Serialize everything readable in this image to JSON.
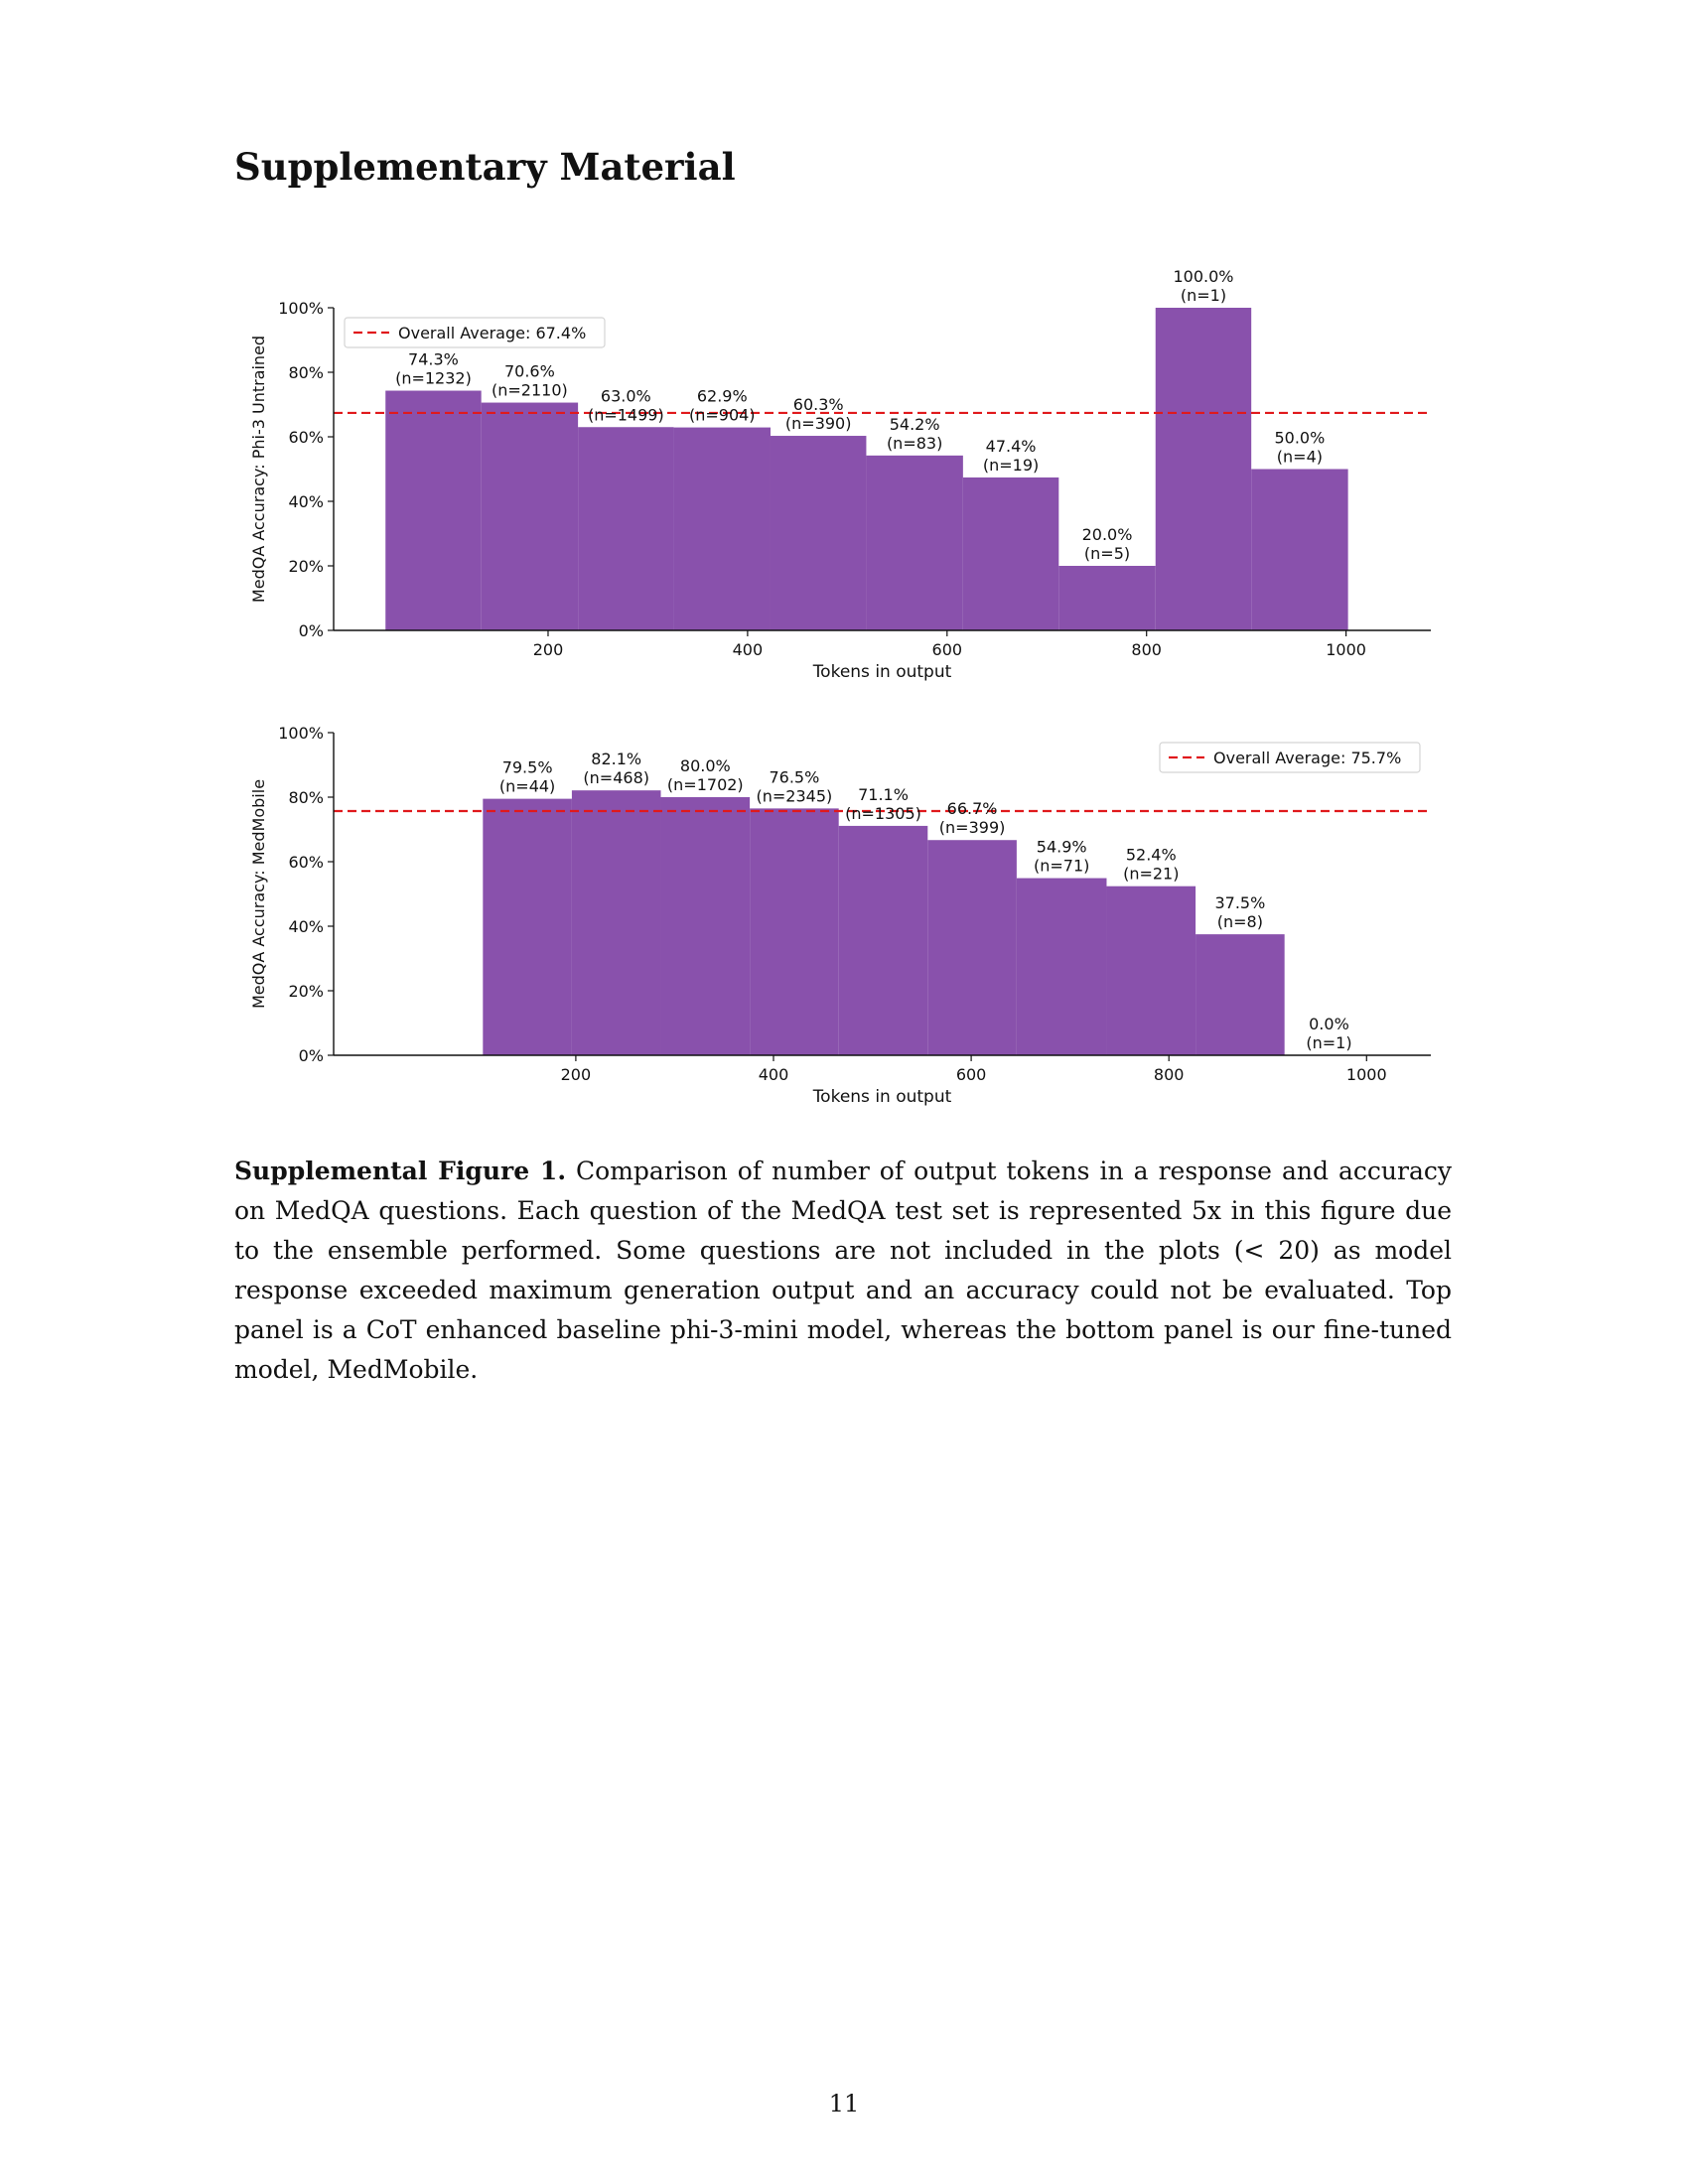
{
  "heading": "Supplementary Material",
  "caption": {
    "label": "Supplemental Figure 1.",
    "text": "Comparison of number of output tokens in a response and accuracy on MedQA questions. Each question of the MedQA test set is represented 5x in this figure due to the ensemble performed. Some questions are not included in the plots (< 20) as model response exceeded maximum generation output and an accuracy could not be evaluated. Top panel is a CoT enhanced baseline phi-3-mini model, whereas the bottom panel is our fine-tuned model, MedMobile."
  },
  "page_number": "11",
  "colors": {
    "bar": "#8951ac",
    "average_line": "#e0191c",
    "axis": "#111111"
  },
  "chart_data": [
    {
      "type": "bar",
      "title": "",
      "xlabel": "Tokens in output",
      "ylabel": "MedQA Accuracy: Phi-3 Untrained",
      "xlim": [
        -15,
        1085
      ],
      "ylim": [
        0,
        100
      ],
      "xticks": [
        200,
        400,
        600,
        800,
        1000
      ],
      "xtick_labels": [
        "200",
        "400",
        "600",
        "800",
        "1000"
      ],
      "yticks": [
        0,
        20,
        40,
        60,
        80,
        100
      ],
      "ytick_labels": [
        "0%",
        "20%",
        "40%",
        "60%",
        "80%",
        "100%"
      ],
      "bin_edges": [
        37,
        133,
        230,
        326,
        423,
        519,
        616,
        712,
        809,
        905,
        1002
      ],
      "values": [
        74.3,
        70.6,
        63.0,
        62.9,
        60.3,
        54.2,
        47.4,
        20.0,
        100.0,
        50.0
      ],
      "value_labels": [
        "74.3%",
        "70.6%",
        "63.0%",
        "62.9%",
        "60.3%",
        "54.2%",
        "47.4%",
        "20.0%",
        "100.0%",
        "50.0%"
      ],
      "counts": [
        "(n=1232)",
        "(n=2110)",
        "(n=1499)",
        "(n=904)",
        "(n=390)",
        "(n=83)",
        "(n=19)",
        "(n=5)",
        "(n=1)",
        "(n=4)"
      ],
      "average": 67.4,
      "average_label": "Overall Average: 67.4%",
      "legend_position": "top-left",
      "grid": false
    },
    {
      "type": "bar",
      "title": "",
      "xlabel": "Tokens in output",
      "ylabel": "MedQA Accuracy: MedMobile",
      "xlim": [
        -45,
        1065
      ],
      "ylim": [
        0,
        100
      ],
      "xticks": [
        200,
        400,
        600,
        800,
        1000
      ],
      "xtick_labels": [
        "200",
        "400",
        "600",
        "800",
        "1000"
      ],
      "yticks": [
        0,
        20,
        40,
        60,
        80,
        100
      ],
      "ytick_labels": [
        "0%",
        "20%",
        "40%",
        "60%",
        "80%",
        "100%"
      ],
      "bin_edges": [
        106,
        196,
        286,
        376,
        466,
        556,
        646,
        737,
        827,
        917,
        1007
      ],
      "values": [
        79.5,
        82.1,
        80.0,
        76.5,
        71.1,
        66.7,
        54.9,
        52.4,
        37.5,
        0.0
      ],
      "value_labels": [
        "79.5%",
        "82.1%",
        "80.0%",
        "76.5%",
        "71.1%",
        "66.7%",
        "54.9%",
        "52.4%",
        "37.5%",
        "0.0%"
      ],
      "counts": [
        "(n=44)",
        "(n=468)",
        "(n=1702)",
        "(n=2345)",
        "(n=1305)",
        "(n=399)",
        "(n=71)",
        "(n=21)",
        "(n=8)",
        "(n=1)"
      ],
      "average": 75.7,
      "average_label": "Overall Average: 75.7%",
      "legend_position": "top-right",
      "grid": false
    }
  ]
}
